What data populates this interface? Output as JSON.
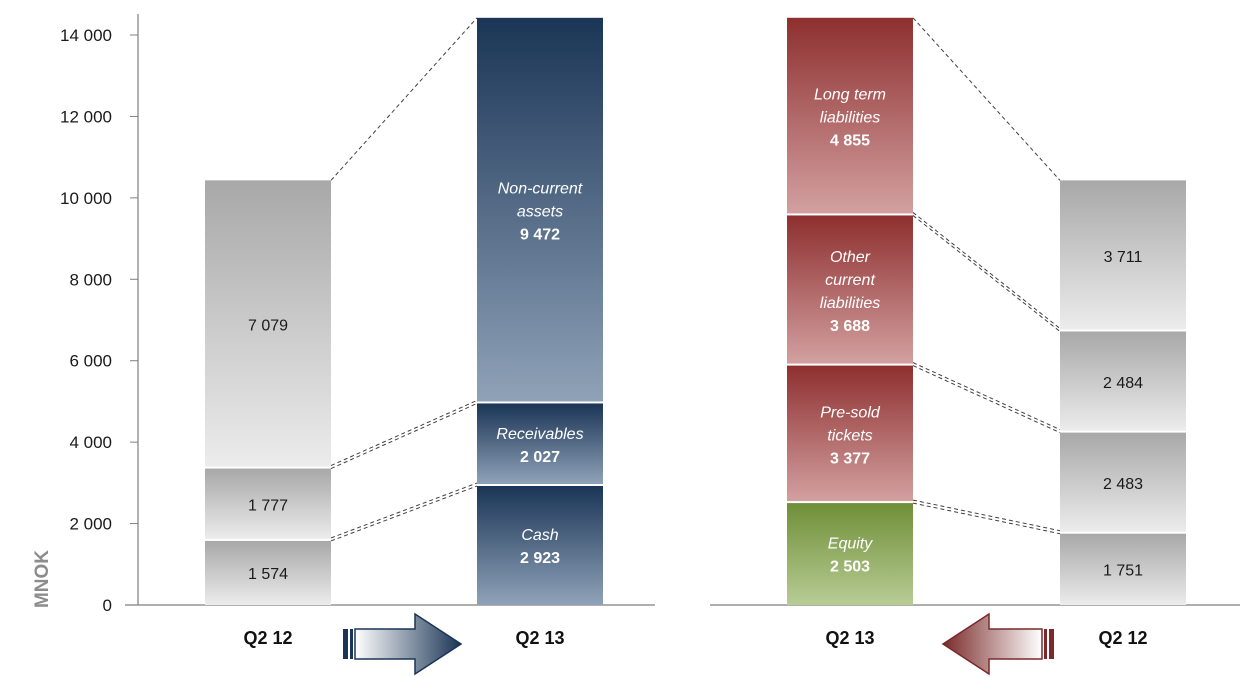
{
  "chart_data": {
    "type": "bar",
    "subtype": "stacked-balance-sheet-comparison",
    "ylabel": "MNOK",
    "ylim": [
      0,
      14000
    ],
    "yticks": [
      "0",
      "2 000",
      "4 000",
      "6 000",
      "8 000",
      "10 000",
      "12 000",
      "14 000"
    ],
    "ytick_values": [
      0,
      2000,
      4000,
      6000,
      8000,
      10000,
      12000,
      14000
    ],
    "grid": false,
    "panels": [
      {
        "side": "assets",
        "bars": [
          {
            "category": "Q2 12",
            "style": "grey",
            "segments": [
              {
                "value": 1574,
                "label": "1 574"
              },
              {
                "value": 1777,
                "label": "1 777"
              },
              {
                "value": 7079,
                "label": "7 079"
              }
            ]
          },
          {
            "category": "Q2 13",
            "style": "blue",
            "segments": [
              {
                "value": 2923,
                "name": [
                  "Cash"
                ],
                "label": "2 923"
              },
              {
                "value": 2027,
                "name": [
                  "Receivables"
                ],
                "label": "2 027"
              },
              {
                "value": 9472,
                "name": [
                  "Non-current",
                  "assets"
                ],
                "label": "9 472"
              }
            ]
          }
        ],
        "arrow": {
          "direction": "right",
          "color": "#1b3556"
        }
      },
      {
        "side": "liabilities-and-equity",
        "bars": [
          {
            "category": "Q2 13",
            "style": "red",
            "segments": [
              {
                "value": 2503,
                "name": [
                  "Equity"
                ],
                "label": "2 503",
                "color": "green"
              },
              {
                "value": 3377,
                "name": [
                  "Pre-sold",
                  "tickets"
                ],
                "label": "3 377"
              },
              {
                "value": 3688,
                "name": [
                  "Other",
                  "current",
                  "liabilities"
                ],
                "label": "3 688"
              },
              {
                "value": 4855,
                "name": [
                  "Long term",
                  "liabilities"
                ],
                "label": "4 855"
              }
            ]
          },
          {
            "category": "Q2 12",
            "style": "grey",
            "segments": [
              {
                "value": 1751,
                "label": "1 751"
              },
              {
                "value": 2483,
                "label": "2 483"
              },
              {
                "value": 2484,
                "label": "2 484"
              },
              {
                "value": 3711,
                "label": "3 711"
              }
            ]
          }
        ],
        "arrow": {
          "direction": "left",
          "color": "#7a2a2a"
        }
      }
    ],
    "colors": {
      "blue_dark": "#1b3556",
      "blue_light": "#8a9db4",
      "red_dark": "#8e2f2f",
      "red_light": "#cf9a9a",
      "green_dark": "#6f8f37",
      "green_light": "#b3c98f",
      "grey_dark": "#a6a6a6",
      "grey_light": "#e8e8e8"
    }
  }
}
